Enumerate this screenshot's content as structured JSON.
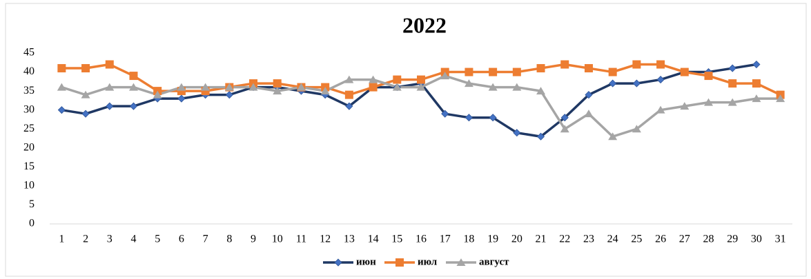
{
  "chart_data": {
    "type": "line",
    "title": "2022",
    "categories": [
      "1",
      "2",
      "3",
      "4",
      "5",
      "6",
      "7",
      "8",
      "9",
      "10",
      "11",
      "12",
      "13",
      "14",
      "15",
      "16",
      "17",
      "18",
      "19",
      "20",
      "21",
      "22",
      "23",
      "24",
      "25",
      "26",
      "27",
      "28",
      "29",
      "30",
      "31"
    ],
    "series": [
      {
        "name": "июн",
        "color": "#1f3864",
        "marker_color": "#4472c4",
        "marker": "diamond",
        "values": [
          30,
          29,
          31,
          31,
          33,
          33,
          34,
          34,
          36,
          36,
          35,
          34,
          31,
          36,
          36,
          37,
          29,
          28,
          28,
          24,
          23,
          28,
          34,
          37,
          37,
          38,
          40,
          40,
          41,
          42,
          null
        ]
      },
      {
        "name": "июл",
        "color": "#ed7d31",
        "marker_color": "#ed7d31",
        "marker": "square",
        "values": [
          41,
          41,
          42,
          39,
          35,
          35,
          35,
          36,
          37,
          37,
          36,
          36,
          34,
          36,
          38,
          38,
          40,
          40,
          40,
          40,
          41,
          42,
          41,
          40,
          42,
          42,
          40,
          39,
          37,
          37,
          34
        ]
      },
      {
        "name": "август",
        "color": "#a5a5a5",
        "marker_color": "#a5a5a5",
        "marker": "triangle",
        "values": [
          36,
          34,
          36,
          36,
          34,
          36,
          36,
          36,
          36,
          35,
          36,
          35,
          38,
          38,
          36,
          36,
          39,
          37,
          36,
          36,
          35,
          25,
          29,
          23,
          25,
          30,
          31,
          32,
          32,
          33,
          33
        ]
      }
    ],
    "ylim": [
      0,
      45
    ],
    "yticks": [
      0,
      5,
      10,
      15,
      20,
      25,
      30,
      35,
      40,
      45
    ],
    "grid": false,
    "legend": "bottom"
  }
}
